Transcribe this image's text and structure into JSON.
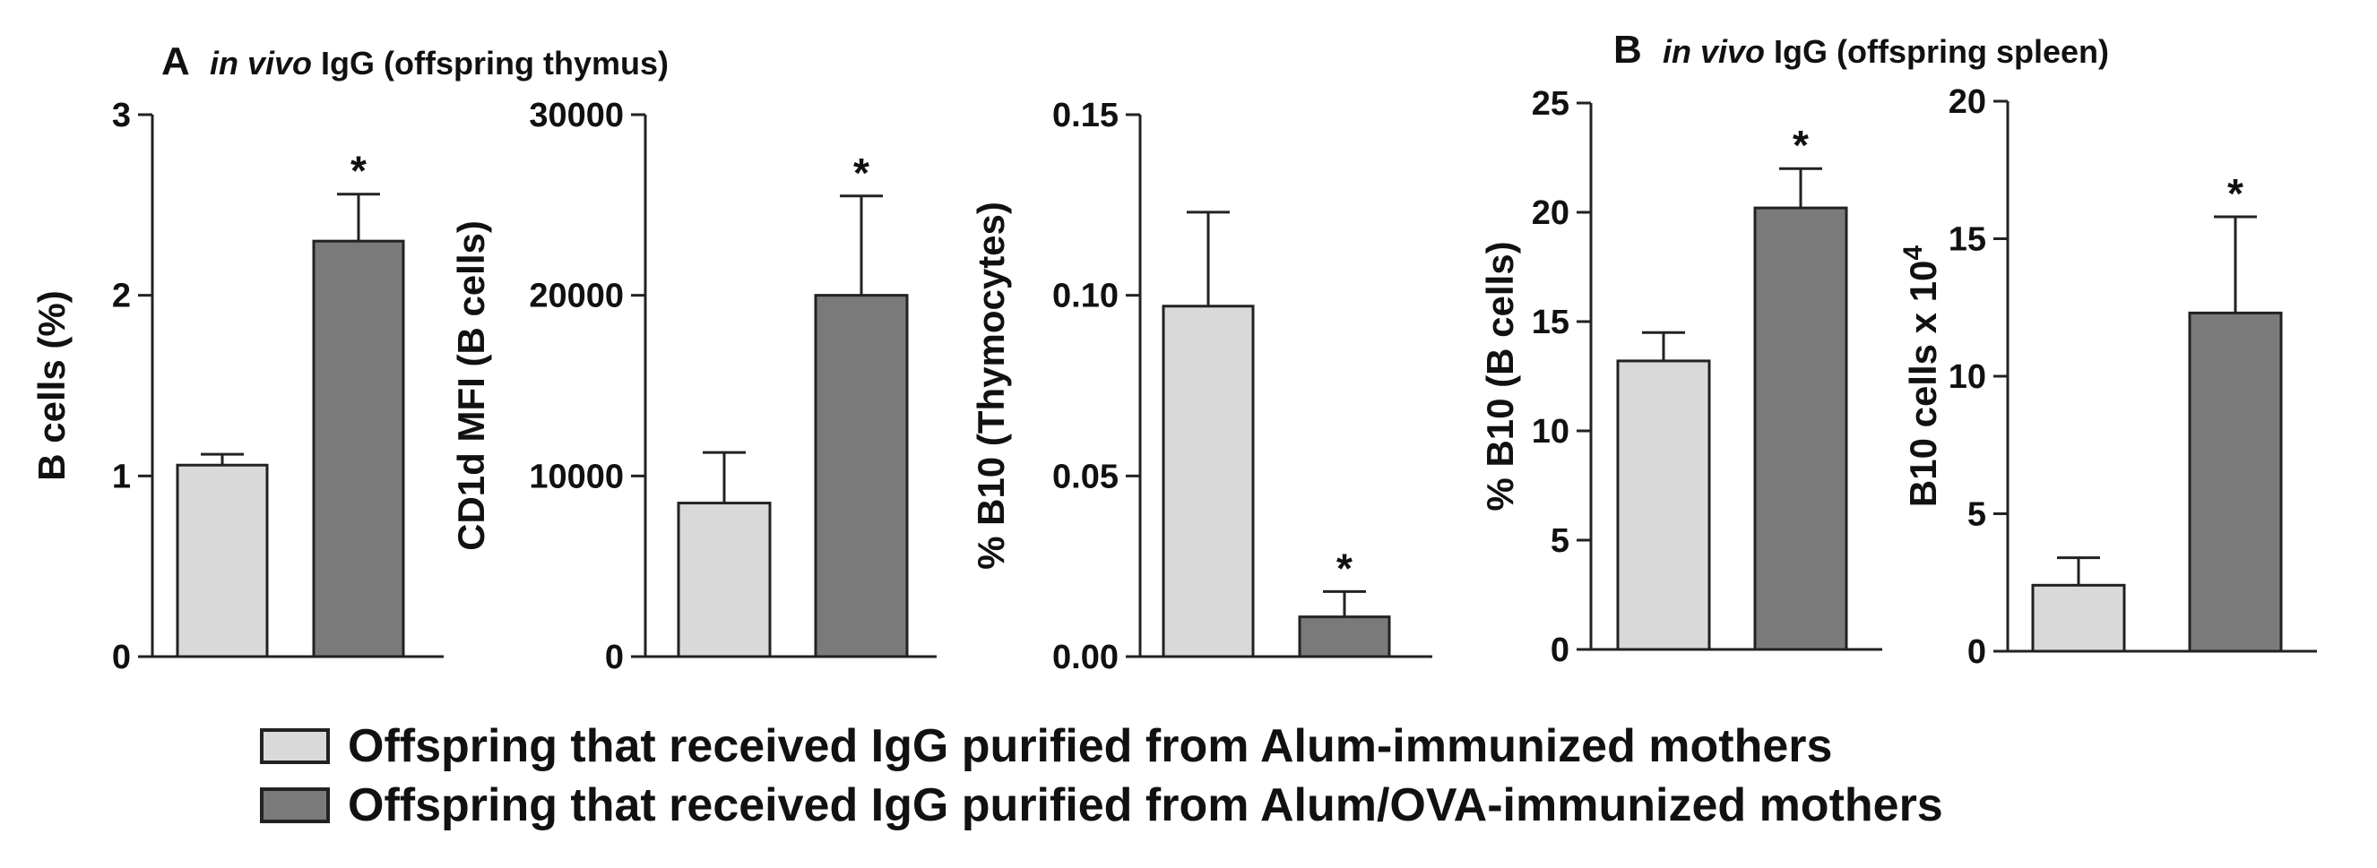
{
  "panels": [
    {
      "letter": "A",
      "italic": "in vivo",
      "rest": " IgG (offspring thymus)"
    },
    {
      "letter": "B",
      "italic": "in vivo",
      "rest": " IgG (offspring spleen)"
    }
  ],
  "colors": {
    "alum": "#d9d9d9",
    "alum_ova": "#7a7a7a"
  },
  "legend": {
    "items": [
      {
        "label": "Offspring that received IgG purified from Alum-immunized mothers",
        "color": "#d9d9d9"
      },
      {
        "label": "Offspring that received IgG purified from Alum/OVA-immunized mothers",
        "color": "#7a7a7a"
      }
    ]
  },
  "chart_data": [
    {
      "type": "bar",
      "panel": "A",
      "ylabel": "B cells (%)",
      "ylim": [
        0,
        3
      ],
      "yticks": [
        "0",
        "1",
        "2",
        "3"
      ],
      "ytick_values": [
        0,
        1,
        2,
        3
      ],
      "series": [
        {
          "value": 1.06,
          "error": 0.06,
          "significant": false
        },
        {
          "value": 2.3,
          "error": 0.26,
          "significant": true
        }
      ]
    },
    {
      "type": "bar",
      "panel": "A",
      "ylabel": "CD1d MFI (B cells)",
      "ylim": [
        0,
        30000
      ],
      "yticks": [
        "0",
        "10000",
        "20000",
        "30000"
      ],
      "ytick_values": [
        0,
        10000,
        20000,
        30000
      ],
      "series": [
        {
          "value": 8500,
          "error": 2800,
          "significant": false
        },
        {
          "value": 20000,
          "error": 5500,
          "significant": true
        }
      ]
    },
    {
      "type": "bar",
      "panel": "A",
      "ylabel": "% B10 (Thymocytes)",
      "ylim": [
        0,
        0.15
      ],
      "yticks": [
        "0.00",
        "0.05",
        "0.10",
        "0.15"
      ],
      "ytick_values": [
        0,
        0.05,
        0.1,
        0.15
      ],
      "series": [
        {
          "value": 0.097,
          "error": 0.026,
          "significant": false
        },
        {
          "value": 0.011,
          "error": 0.007,
          "significant": true
        }
      ]
    },
    {
      "type": "bar",
      "panel": "B",
      "ylabel": "% B10 (B cells)",
      "ylim": [
        0,
        25
      ],
      "yticks": [
        "0",
        "5",
        "10",
        "15",
        "20",
        "25"
      ],
      "ytick_values": [
        0,
        5,
        10,
        15,
        20,
        25
      ],
      "series": [
        {
          "value": 13.2,
          "error": 1.3,
          "significant": false
        },
        {
          "value": 20.2,
          "error": 1.8,
          "significant": true
        }
      ]
    },
    {
      "type": "bar",
      "panel": "B",
      "ylabel": "B10 cells x 10",
      "ylabel_superscript": "4",
      "ylim": [
        0,
        20
      ],
      "yticks": [
        "0",
        "5",
        "10",
        "15",
        "20"
      ],
      "ytick_values": [
        0,
        5,
        10,
        15,
        20
      ],
      "series": [
        {
          "value": 2.4,
          "error": 1.0,
          "significant": false
        },
        {
          "value": 12.3,
          "error": 3.5,
          "significant": true
        }
      ]
    }
  ]
}
